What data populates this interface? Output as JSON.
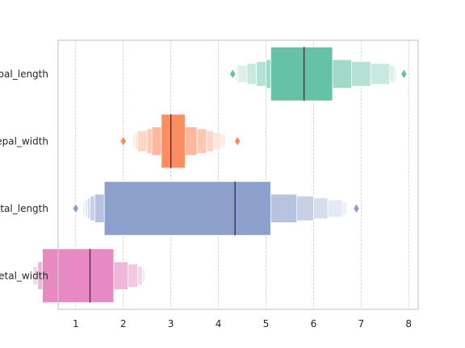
{
  "chart_data": {
    "type": "boxenplot",
    "orientation": "horizontal",
    "title": "",
    "xlabel": "",
    "ylabel": "",
    "xlim": [
      0.63,
      8.2
    ],
    "xticks": [
      1,
      2,
      3,
      4,
      5,
      6,
      7,
      8
    ],
    "grid": "x",
    "colors": {
      "sepal_length": "#66c2a5",
      "sepal_width": "#fc8d62",
      "petal_length": "#8da0cb",
      "petal_width": "#e78ac3"
    },
    "categories": [
      {
        "name": "sepal_length",
        "label": "sepal_length",
        "median": 5.8,
        "boxes": [
          [
            5.1,
            6.4
          ],
          [
            5.0,
            6.8
          ],
          [
            4.8,
            7.2
          ],
          [
            4.6,
            7.6
          ],
          [
            4.4,
            7.7
          ],
          [
            4.35,
            7.75
          ]
        ],
        "outliers": [
          4.3,
          7.9
        ]
      },
      {
        "name": "sepal_width",
        "label": "sepal_width",
        "median": 3.0,
        "boxes": [
          [
            2.8,
            3.3
          ],
          [
            2.6,
            3.55
          ],
          [
            2.5,
            3.75
          ],
          [
            2.3,
            3.9
          ],
          [
            2.25,
            4.05
          ],
          [
            2.2,
            4.15
          ]
        ],
        "outliers": [
          2.0,
          4.4
        ]
      },
      {
        "name": "petal_length",
        "label": "petal_length",
        "median": 4.35,
        "boxes": [
          [
            1.6,
            5.1
          ],
          [
            1.4,
            5.65
          ],
          [
            1.3,
            6.0
          ],
          [
            1.25,
            6.3
          ],
          [
            1.2,
            6.6
          ],
          [
            1.15,
            6.7
          ]
        ],
        "outliers": [
          1.0,
          6.9
        ]
      },
      {
        "name": "petal_width",
        "label": "petal_width",
        "median": 1.3,
        "boxes": [
          [
            0.3,
            1.8
          ],
          [
            0.2,
            2.1
          ],
          [
            0.2,
            2.3
          ],
          [
            0.1,
            2.4
          ],
          [
            0.1,
            2.45
          ]
        ],
        "outliers": []
      }
    ]
  }
}
